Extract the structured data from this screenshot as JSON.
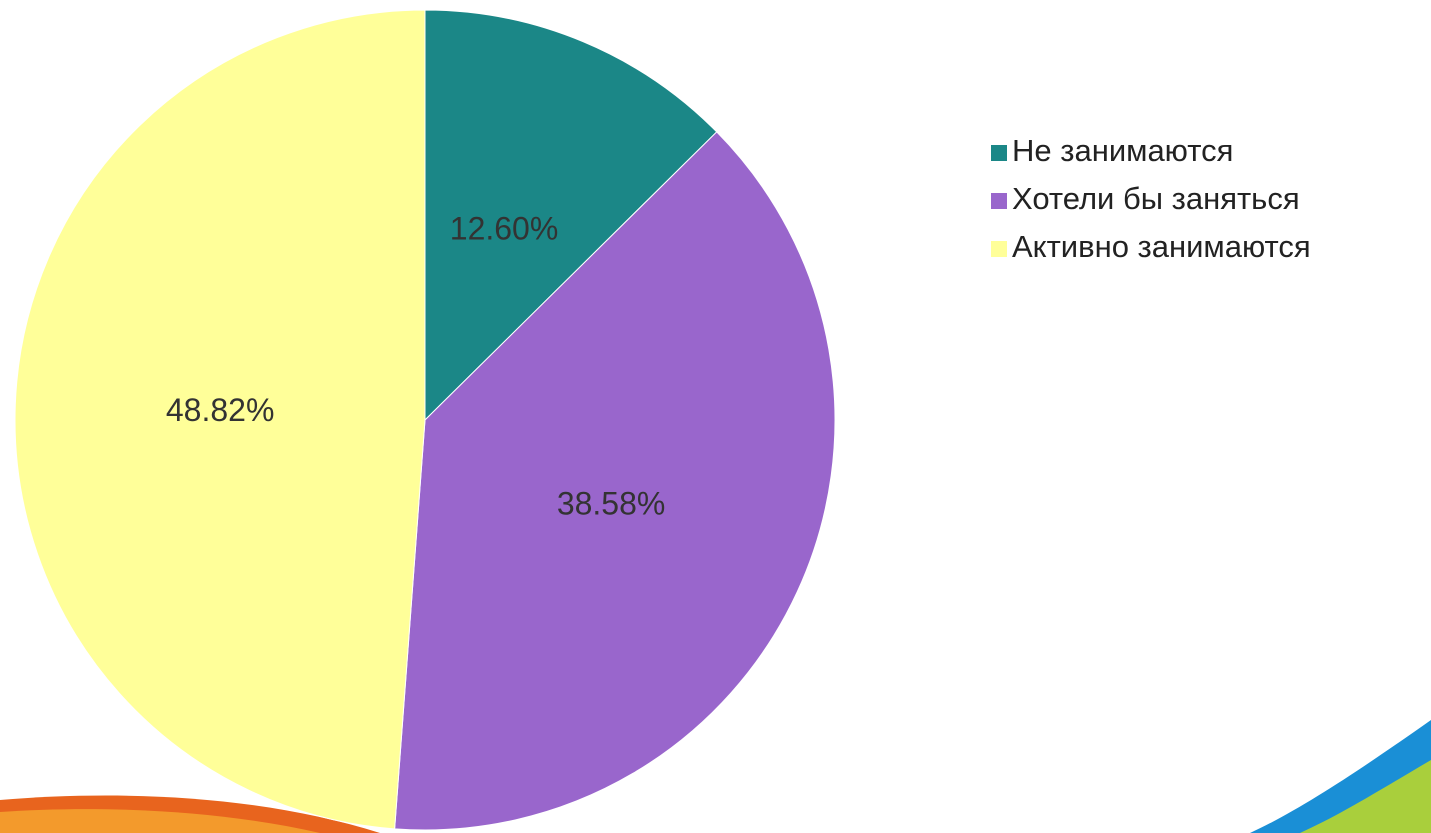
{
  "chart_data": {
    "type": "pie",
    "categories": [
      "Не занимаются",
      "Хотели бы заняться",
      "Активно занимаются"
    ],
    "values": [
      12.6,
      38.58,
      48.82
    ],
    "value_labels": [
      "12.60%",
      "38.58%",
      "48.82%"
    ],
    "colors": [
      "#1b8787",
      "#9966cc",
      "#ffff99"
    ],
    "legend": "right"
  }
}
